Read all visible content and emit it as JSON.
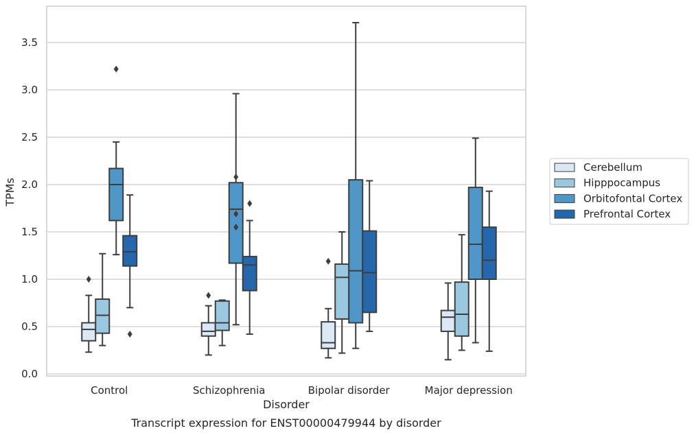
{
  "chart_data": {
    "type": "box",
    "title": "Transcript expression for ENST00000479944 by disorder",
    "xlabel": "Disorder",
    "ylabel": "TPMs",
    "ylim": [
      0,
      3.85
    ],
    "yticks": [
      "0.0",
      "0.5",
      "1.0",
      "1.5",
      "2.0",
      "2.5",
      "3.0",
      "3.5"
    ],
    "grid": true,
    "legend_position": "right",
    "categories": [
      "Control",
      "Schizophrenia",
      "Bipolar disorder",
      "Major depression"
    ],
    "series": [
      {
        "name": "Cerebellum",
        "color": "#dbe9f6",
        "boxes": [
          {
            "whislo": 0.23,
            "q1": 0.35,
            "med": 0.47,
            "q3": 0.54,
            "whishi": 0.83,
            "fliers": [
              1.0
            ]
          },
          {
            "whislo": 0.2,
            "q1": 0.4,
            "med": 0.45,
            "q3": 0.54,
            "whishi": 0.72,
            "fliers": [
              0.83
            ]
          },
          {
            "whislo": 0.17,
            "q1": 0.27,
            "med": 0.33,
            "q3": 0.55,
            "whishi": 0.69,
            "fliers": [
              1.19
            ]
          },
          {
            "whislo": 0.15,
            "q1": 0.45,
            "med": 0.6,
            "q3": 0.67,
            "whishi": 0.96,
            "fliers": []
          }
        ]
      },
      {
        "name": "Hipppocampus",
        "color": "#9ac8e0",
        "boxes": [
          {
            "whislo": 0.3,
            "q1": 0.43,
            "med": 0.62,
            "q3": 0.79,
            "whishi": 1.27,
            "fliers": []
          },
          {
            "whislo": 0.3,
            "q1": 0.46,
            "med": 0.54,
            "q3": 0.77,
            "whishi": 0.78,
            "fliers": []
          },
          {
            "whislo": 0.22,
            "q1": 0.58,
            "med": 1.02,
            "q3": 1.16,
            "whishi": 1.5,
            "fliers": []
          },
          {
            "whislo": 0.25,
            "q1": 0.4,
            "med": 0.63,
            "q3": 0.97,
            "whishi": 1.47,
            "fliers": []
          }
        ]
      },
      {
        "name": "Orbitofontal Cortex",
        "color": "#5097c9",
        "boxes": [
          {
            "whislo": 1.26,
            "q1": 1.62,
            "med": 2.0,
            "q3": 2.17,
            "whishi": 2.45,
            "fliers": [
              3.22
            ]
          },
          {
            "whislo": 0.52,
            "q1": 1.17,
            "med": 1.74,
            "q3": 2.02,
            "whishi": 2.96,
            "fliers": [
              2.08,
              1.69,
              1.55
            ]
          },
          {
            "whislo": 0.27,
            "q1": 0.54,
            "med": 1.09,
            "q3": 2.05,
            "whishi": 3.71,
            "fliers": []
          },
          {
            "whislo": 0.33,
            "q1": 1.0,
            "med": 1.37,
            "q3": 1.97,
            "whishi": 2.49,
            "fliers": []
          }
        ]
      },
      {
        "name": "Prefrontal Cortex",
        "color": "#2567ac",
        "boxes": [
          {
            "whislo": 0.7,
            "q1": 1.14,
            "med": 1.29,
            "q3": 1.46,
            "whishi": 1.89,
            "fliers": [
              0.42
            ]
          },
          {
            "whislo": 0.42,
            "q1": 0.88,
            "med": 1.15,
            "q3": 1.24,
            "whishi": 1.62,
            "fliers": [
              1.8
            ]
          },
          {
            "whislo": 0.45,
            "q1": 0.65,
            "med": 1.07,
            "q3": 1.51,
            "whishi": 2.04,
            "fliers": []
          },
          {
            "whislo": 0.24,
            "q1": 1.0,
            "med": 1.2,
            "q3": 1.55,
            "whishi": 1.93,
            "fliers": []
          }
        ]
      }
    ]
  }
}
